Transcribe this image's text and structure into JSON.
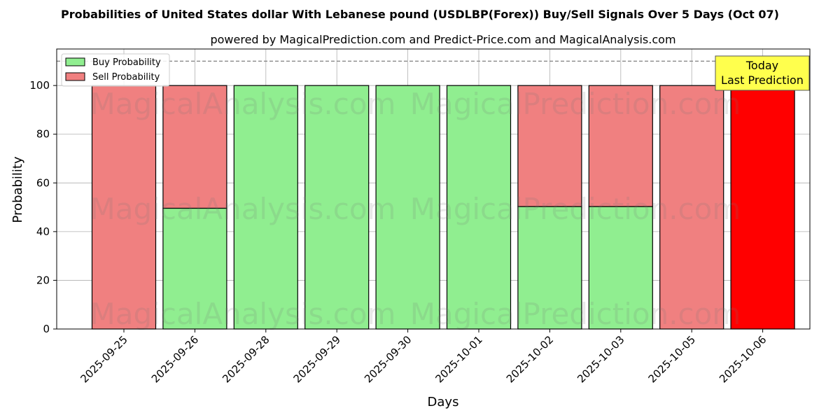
{
  "chart_data": {
    "type": "bar",
    "stacked": true,
    "title": "Probabilities of United States dollar With Lebanese pound (USDLBP(Forex)) Buy/Sell Signals Over 5 Days (Oct 07)",
    "subtitle": "powered by MagicalPrediction.com and Predict-Price.com and MagicalAnalysis.com",
    "xlabel": "Days",
    "ylabel": "Probability",
    "ylim": [
      0,
      115
    ],
    "yticks": [
      0,
      20,
      40,
      60,
      80,
      100
    ],
    "categories": [
      "2025-09-25",
      "2025-09-26",
      "2025-09-28",
      "2025-09-29",
      "2025-09-30",
      "2025-10-01",
      "2025-10-02",
      "2025-10-03",
      "2025-10-05",
      "2025-10-06"
    ],
    "series": [
      {
        "name": "Buy Probability",
        "color": "#90ee90",
        "values": [
          0,
          49.6,
          100,
          100,
          100,
          100,
          50.3,
          50.3,
          0,
          0
        ]
      },
      {
        "name": "Sell Probability",
        "color": "#f08080",
        "values": [
          100,
          50.4,
          0,
          0,
          0,
          0,
          49.7,
          49.7,
          100,
          100
        ]
      }
    ],
    "highlight": {
      "category": "2025-10-06",
      "color": "#ff0000"
    },
    "reference_line": {
      "y": 110,
      "style": "dashed",
      "color": "#808080"
    },
    "annotation": {
      "lines": [
        "Today",
        "Last Prediction"
      ],
      "background": "#ffff4d"
    },
    "legend": {
      "placement": "top-left"
    },
    "grid": true,
    "watermarks": [
      "MagicalAnalysis.com",
      "MagicalPrediction.com"
    ]
  }
}
